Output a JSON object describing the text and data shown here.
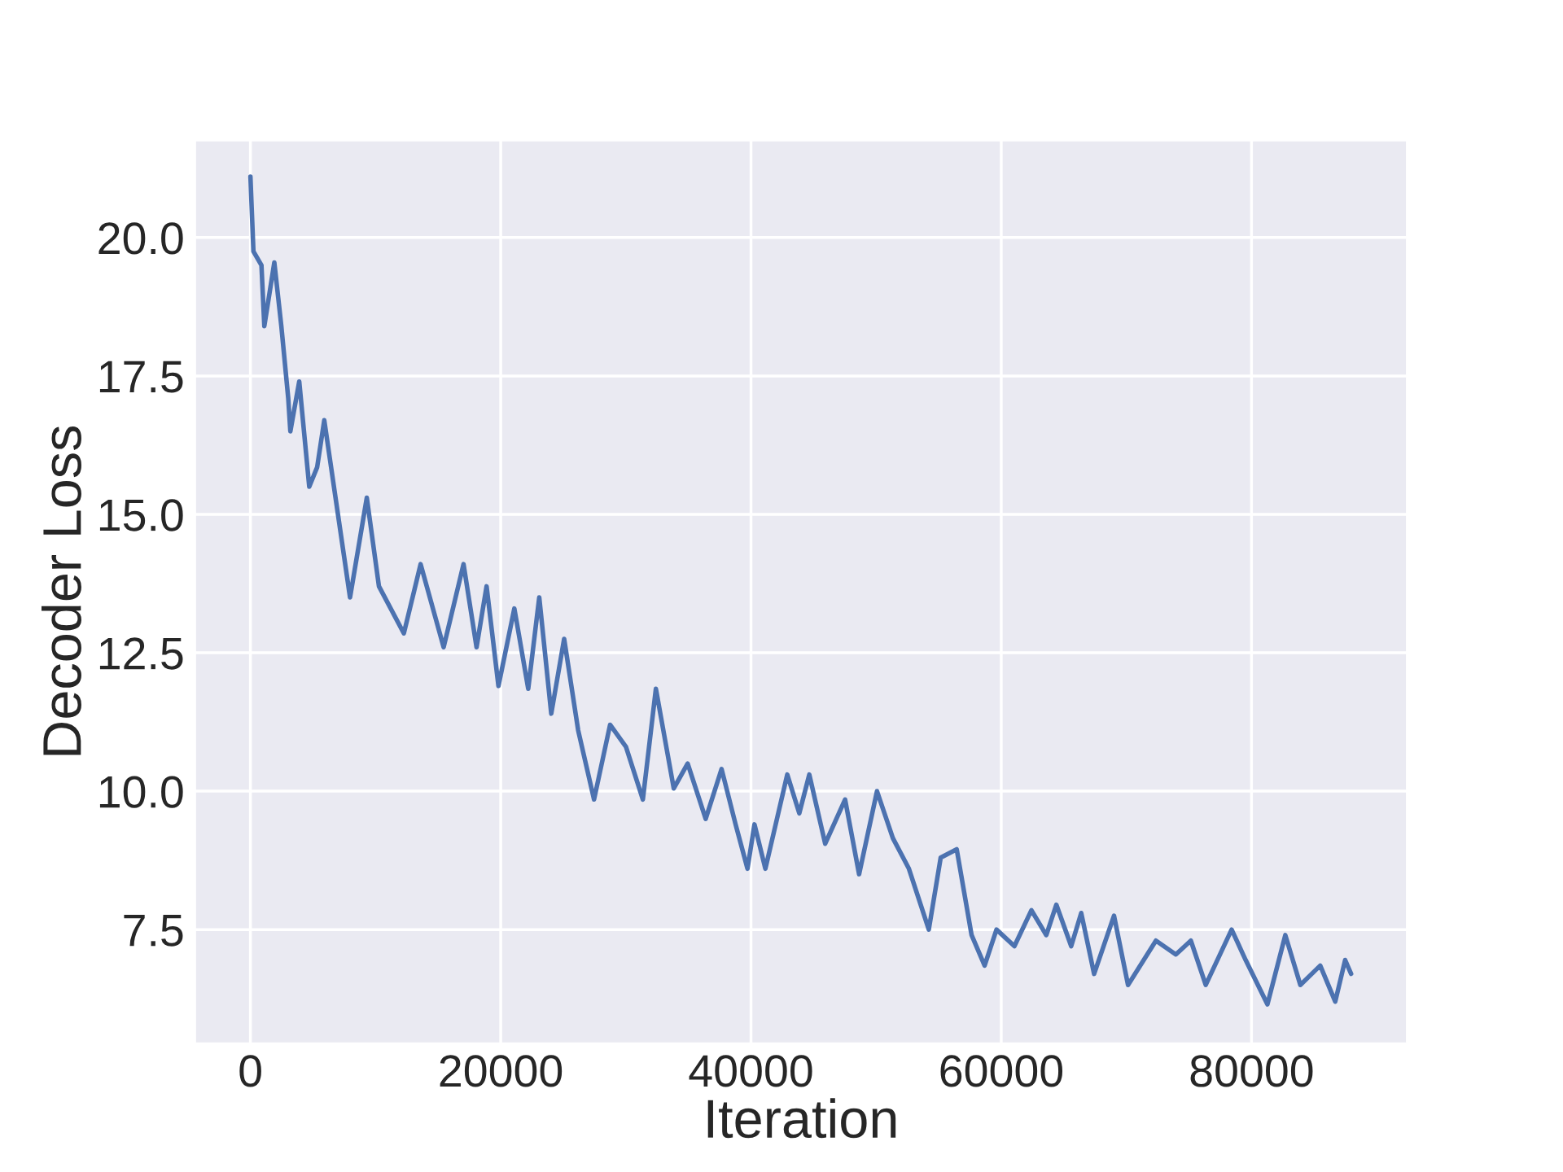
{
  "chart_data": {
    "type": "line",
    "xlabel": "Iteration",
    "ylabel": "Decoder Loss",
    "xlim": [
      -4400,
      92400
    ],
    "ylim": [
      5.45,
      21.75
    ],
    "xticks": [
      0,
      20000,
      40000,
      60000,
      80000
    ],
    "yticks": [
      {
        "value": 7.5,
        "label": "7.5"
      },
      {
        "value": 10,
        "label": "10.0"
      },
      {
        "value": 12.5,
        "label": "12.5"
      },
      {
        "value": 15,
        "label": "15.0"
      },
      {
        "value": 17.5,
        "label": "17.5"
      },
      {
        "value": 20,
        "label": "20.0"
      }
    ],
    "grid": true,
    "marker": "none",
    "line_style": "solid",
    "series": [
      {
        "color": "#4c72b0",
        "x": [
          0,
          240,
          880,
          1110,
          1910,
          2470,
          3020,
          3190,
          3900,
          4700,
          5330,
          5900,
          7960,
          9300,
          10270,
          12260,
          13600,
          15440,
          17030,
          18070,
          18870,
          19820,
          21090,
          22200,
          23080,
          24040,
          25070,
          26190,
          27460,
          28740,
          30010,
          31360,
          32400,
          33830,
          34940,
          36380,
          37650,
          38770,
          39720,
          40280,
          41150,
          42900,
          43860,
          44660,
          45930,
          47520,
          48640,
          50070,
          51340,
          52620,
          54210,
          55160,
          56440,
          57630,
          58670,
          59620,
          61050,
          62410,
          63600,
          64400,
          65590,
          66390,
          67420,
          69010,
          70130,
          72360,
          73950,
          75150,
          76340,
          78410,
          79530,
          81270,
          82700,
          83900,
          85490,
          86690,
          87480,
          87960
        ],
        "values": [
          21.1,
          19.75,
          19.5,
          18.4,
          19.55,
          18.4,
          17.1,
          16.5,
          17.4,
          15.5,
          15.85,
          16.7,
          13.5,
          15.3,
          13.7,
          12.85,
          14.1,
          12.6,
          14.1,
          12.6,
          13.7,
          11.9,
          13.3,
          11.85,
          13.5,
          11.4,
          12.75,
          11.1,
          9.85,
          11.2,
          10.8,
          9.85,
          11.85,
          10.05,
          10.5,
          9.5,
          10.4,
          9.4,
          8.6,
          9.4,
          8.6,
          10.3,
          9.6,
          10.3,
          9.05,
          9.85,
          8.5,
          10.0,
          9.15,
          8.6,
          7.5,
          8.8,
          8.95,
          7.4,
          6.85,
          7.5,
          7.2,
          7.85,
          7.4,
          7.95,
          7.2,
          7.8,
          6.7,
          7.75,
          6.5,
          7.3,
          7.05,
          7.3,
          6.5,
          7.5,
          6.95,
          6.15,
          7.4,
          6.5,
          6.85,
          6.2,
          6.95,
          6.7
        ]
      }
    ]
  }
}
